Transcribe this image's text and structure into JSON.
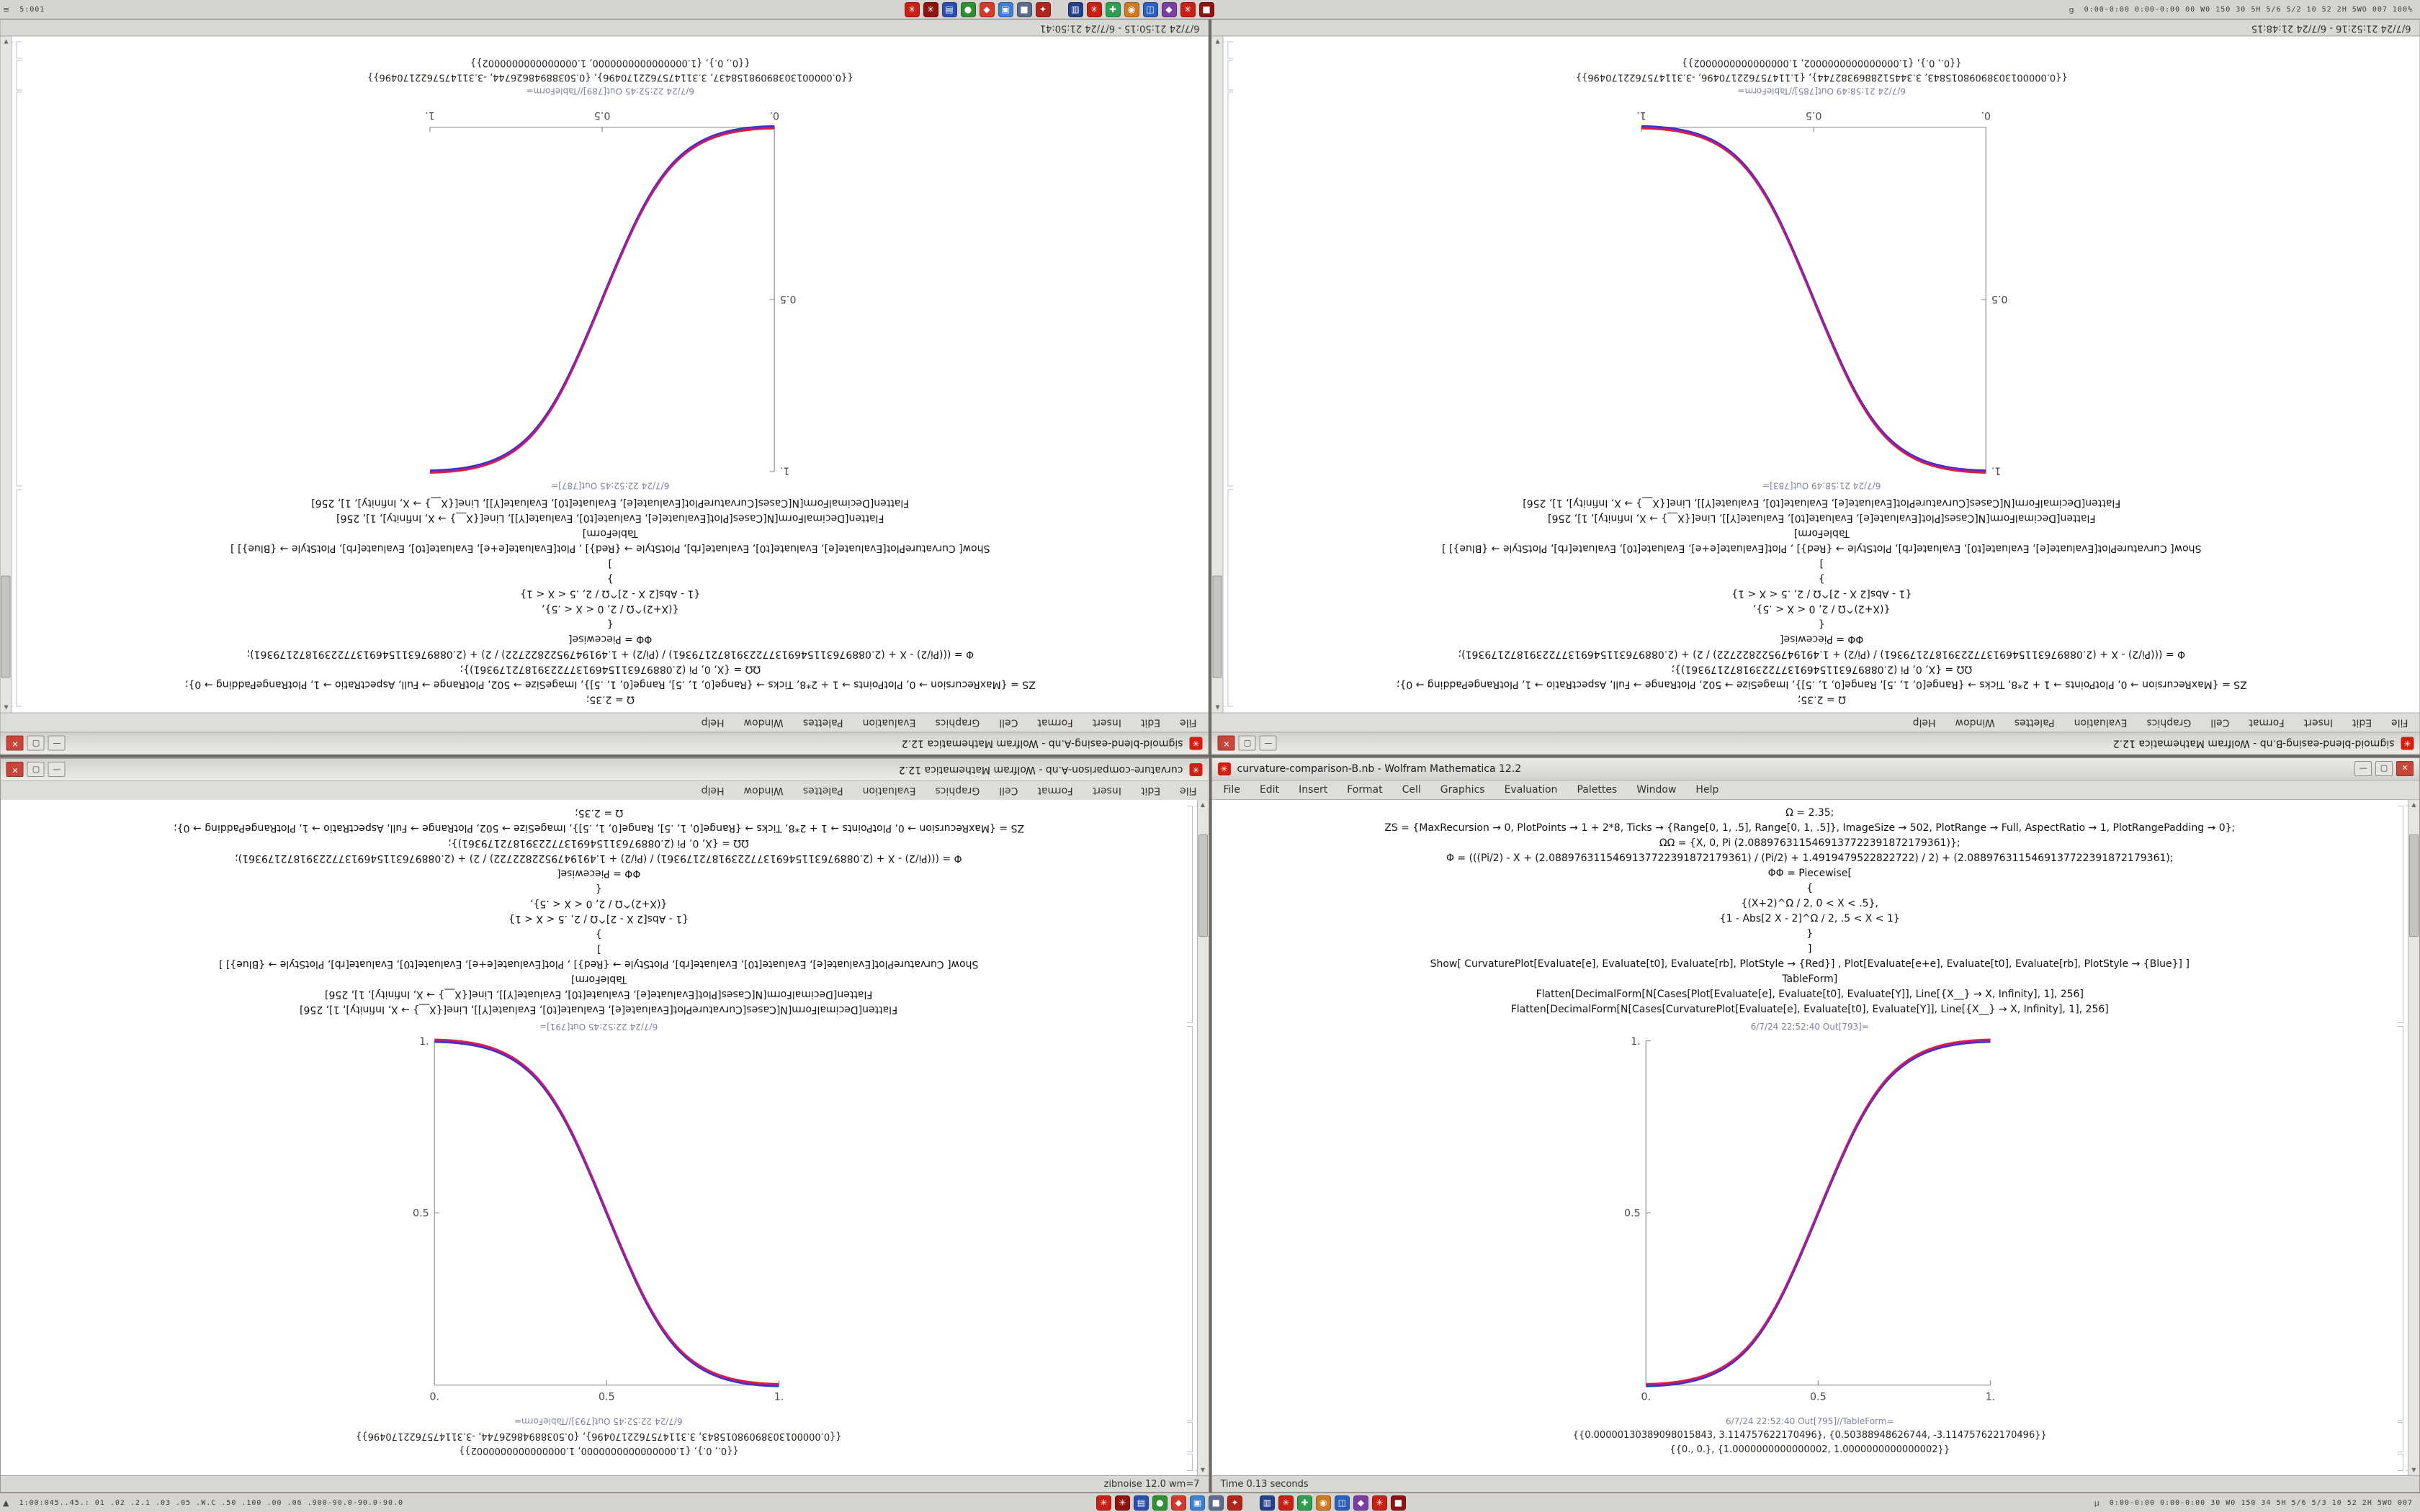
{
  "app": {
    "name_suffix": "Wolfram Mathematica 12.2"
  },
  "taskbar_top": {
    "left_glyph": "≡",
    "left_text": "5:001",
    "right_glyph": "g",
    "right_text": "0:00-0:00 0:00-0:00 00 W0 150 30 5H 5/6 5/2 10 52 2H 5WO 007 100%"
  },
  "taskbar_bottom": {
    "left_glyph": "▲",
    "left_text": "1:00:045..45.: 01 .02 .2.1 .03 .05 .W.C .50 .100 .00 .06 .900-90.0-90.0-90.0",
    "right_glyph": "µ",
    "right_text": "0:00-0:00 0:00-0:00 30 W0 150 34 5H 5/6 5/3 10 52 2H 5WO 007"
  },
  "dock_icons": {
    "group_left": [
      {
        "name": "wolfram-red-icon",
        "color": "#c62017",
        "glyph": "✳"
      },
      {
        "name": "wolfram-maroon-icon",
        "color": "#8e1410",
        "glyph": "✳"
      },
      {
        "name": "docs-blue-icon",
        "color": "#2b4fae",
        "glyph": "▤"
      },
      {
        "name": "kernel-green-icon",
        "color": "#2f8f33",
        "glyph": "●"
      },
      {
        "name": "app-red-icon",
        "color": "#d23a2e",
        "glyph": "◆"
      },
      {
        "name": "app-lightblue-icon",
        "color": "#3f7fd1",
        "glyph": "▣"
      },
      {
        "name": "app-slate-icon",
        "color": "#5d6b8c",
        "glyph": "■"
      },
      {
        "name": "app-crimson-icon",
        "color": "#b1251d",
        "glyph": "✦"
      }
    ],
    "group_right": [
      {
        "name": "nav-navy-icon",
        "color": "#27408b",
        "glyph": "▥"
      },
      {
        "name": "wolfram-red-icon",
        "color": "#c62017",
        "glyph": "✳"
      },
      {
        "name": "app-green-icon",
        "color": "#2e9e4f",
        "glyph": "✚"
      },
      {
        "name": "app-orange-icon",
        "color": "#d07a22",
        "glyph": "◉"
      },
      {
        "name": "app-blue-icon",
        "color": "#2b5fc0",
        "glyph": "◫"
      },
      {
        "name": "app-purple-icon",
        "color": "#7a3fa0",
        "glyph": "◆"
      },
      {
        "name": "wolfram-red2-icon",
        "color": "#c62017",
        "glyph": "✳"
      },
      {
        "name": "app-darkred-icon",
        "color": "#8e1410",
        "glyph": "■"
      }
    ]
  },
  "menu_items": [
    "File",
    "Edit",
    "Insert",
    "Format",
    "Cell",
    "Graphics",
    "Evaluation",
    "Palettes",
    "Window",
    "Help"
  ],
  "window_controls": {
    "minimize": "—",
    "maximize": "▢",
    "close": "✕"
  },
  "app_icon_glyph": "✳",
  "notebook_code": [
    "Ω = 2.35;",
    "ZS = {MaxRecursion → 0, PlotPoints → 1 + 2*8, Ticks → {Range[0, 1, .5], Range[0, 1, .5]}, ImageSize → 502, PlotRange → Full, AspectRatio → 1, PlotRangePadding → 0};",
    "ΩΩ = {X, 0, Pi (2.0889763115469137722391872179361)};",
    "Φ = (((Pi/2) - X + (2.0889763115469137722391872179361) / (Pi/2) + 1.4919479522822722) / 2) + (2.0889763115469137722391872179361);",
    "ΦΦ = Piecewise[",
    "{",
    "{(X+2)^Ω / 2, 0 < X < .5},",
    "{1 - Abs[2 X - 2]^Ω / 2, .5 < X < 1}",
    "}",
    "]",
    "Show[  CurvaturePlot[Evaluate[e], Evaluate[t0], Evaluate[rb], PlotStyle → {Red}] ,  Plot[Evaluate[e+e], Evaluate[t0], Evaluate[rb], PlotStyle → {Blue}] ]",
    "TableForm]",
    "Flatten[DecimalForm[N[Cases[Plot[Evaluate[e], Evaluate[t0], Evaluate[Y]], Line[{X__} → X, Infinity], 1], 256]",
    "Flatten[DecimalForm[N[Cases[CurvaturePlot[Evaluate[e], Evaluate[t0], Evaluate[Y]], Line[{X__} → X, Infinity], 1], 256]"
  ],
  "plot": {
    "x_tick_labels": [
      "0.",
      "0.5",
      "1."
    ],
    "y_tick_labels": [
      "0.5",
      "1."
    ],
    "axis_color": "#9b9b9b",
    "curve_red": "#e02430",
    "curve_blue": "#2b35c8",
    "curve_magenta": "#a31ba0"
  },
  "windows": [
    {
      "id": "top-left",
      "orientation": "rotated",
      "plot_direction": "up",
      "title": "sigmoid-blend-easing-A.nb - Wolfram Mathematica 12.2",
      "out_label_plot": "6/7/24 22:52:45 Out[787]=",
      "out_label_table": "6/7/24 22:52:45 Out[789]//TableForm=",
      "outputs": [
        "{{0.00000130389098158437, 3.3114757622170496}, {0.50388948626744, -3.3114757622170496}}",
        "{{0., 0.}, {1.0000000000000000, 1.0000000000000002}}"
      ],
      "status": "6/7/24 21:50:15 - 6/7/24 21:50:41",
      "status_align": "left"
    },
    {
      "id": "top-right",
      "orientation": "rotated",
      "plot_direction": "down",
      "title": "sigmoid-blend-easing-B.nb - Wolfram Mathematica 12.2",
      "out_label_plot": "6/7/24 21:58:49 Out[783]=",
      "out_label_table": "6/7/24 21:58:49 Out[785]//TableForm=",
      "outputs": [
        "{{0.00000130389098015843, 3.3445128869382744}, {1.114757622170496, -3.3114757622170496}}",
        "{{0., 0.}, {1.0000000000000002, 1.0000000000000002}}"
      ],
      "status": "6/7/24 21:52:16 - 6/7/24 21:48:15",
      "status_align": "left"
    },
    {
      "id": "bottom-left",
      "orientation": "flip",
      "plot_direction": "down",
      "title": "curvature-comparison-A.nb - Wolfram Mathematica 12.2",
      "out_label_plot": "6/7/24 22:52:45 Out[791]=",
      "out_label_table": "6/7/24 22:52:45 Out[793]//TableForm=",
      "outputs": [
        "{{0.00000130389098015843, 3.3114757622170496}, {0.50388948626744, -3.3114757622170496}}",
        "{{0., 0.}, {1.0000000000000000, 1.0000000000000002}}"
      ],
      "status": "zibnoise 12.0 wm=7",
      "status_align": "right"
    },
    {
      "id": "bottom-right",
      "orientation": "normal",
      "plot_direction": "up",
      "title": "curvature-comparison-B.nb - Wolfram Mathematica 12.2",
      "out_label_plot": "6/7/24 22:52:40 Out[793]=",
      "out_label_table": "6/7/24 22:52:40 Out[795]//TableForm=",
      "outputs": [
        "{{0.00000130389098015843, 3.114757622170496}, {0.50388948626744, -3.114757622170496}}",
        "{{0., 0.}, {1.0000000000000002, 1.0000000000000002}}"
      ],
      "status": "Time 0.13 seconds",
      "status_align": "left"
    }
  ]
}
